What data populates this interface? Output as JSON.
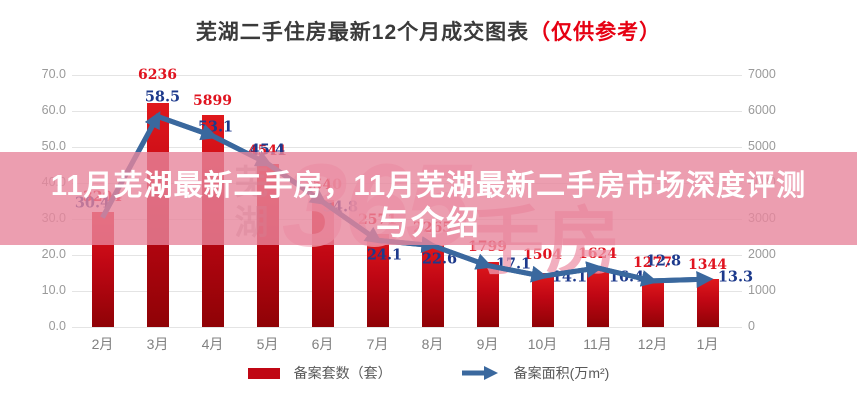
{
  "title": {
    "text": "芜湖二手住房最新12个月成交图表",
    "highlight": "（仅供参考）"
  },
  "overlay": {
    "line1": "11月芜湖最新二手房，11月芜湖最新二手房市场深度评测",
    "line2": "与介绍"
  },
  "watermark": {
    "left": "芜湖",
    "big": "365",
    "right": "手房"
  },
  "legend": {
    "bar_label": "备案套数（套）",
    "line_label": "备案面积(万m²)"
  },
  "colors": {
    "bar_top": "#e0181c",
    "bar_bottom": "#8f0206",
    "bar_label": "#e0131f",
    "line": "#3a689e",
    "line_label": "#1d3a8c",
    "title_highlight": "#e60012",
    "band": "rgba(231,134,156,0.80)",
    "axis_text": "#9a9a9a",
    "grid": "#e4e4e4"
  },
  "chart_data": {
    "type": "bar",
    "title": "芜湖二手住房最新12个月成交图表（仅供参考）",
    "categories": [
      "2月",
      "3月",
      "4月",
      "5月",
      "6月",
      "7月",
      "8月",
      "9月",
      "10月",
      "11月",
      "12月",
      "1月"
    ],
    "series": [
      {
        "name": "备案套数（套）",
        "type": "bar",
        "axis": "right",
        "values": [
          3204,
          6236,
          5899,
          4541,
          3540,
          2571,
          2265,
          1799,
          1504,
          1624,
          1277,
          1344
        ]
      },
      {
        "name": "备案面积(万m²)",
        "type": "line",
        "axis": "left",
        "values": [
          30.4,
          58.5,
          53.1,
          45.4,
          34.8,
          24.1,
          22.6,
          17.1,
          14.1,
          16.4,
          12.8,
          13.3
        ]
      }
    ],
    "left_axis": {
      "min": 0,
      "max": 70,
      "step": 10,
      "labels": [
        "0.0",
        "10.0",
        "20.0",
        "30.0",
        "40.0",
        "50.0",
        "60.0",
        "70.0"
      ]
    },
    "right_axis": {
      "min": 0,
      "max": 7000,
      "step": 1000,
      "labels": [
        "0",
        "1000",
        "2000",
        "3000",
        "4000",
        "5000",
        "6000",
        "7000"
      ]
    },
    "grid": true,
    "legend_position": "bottom"
  }
}
